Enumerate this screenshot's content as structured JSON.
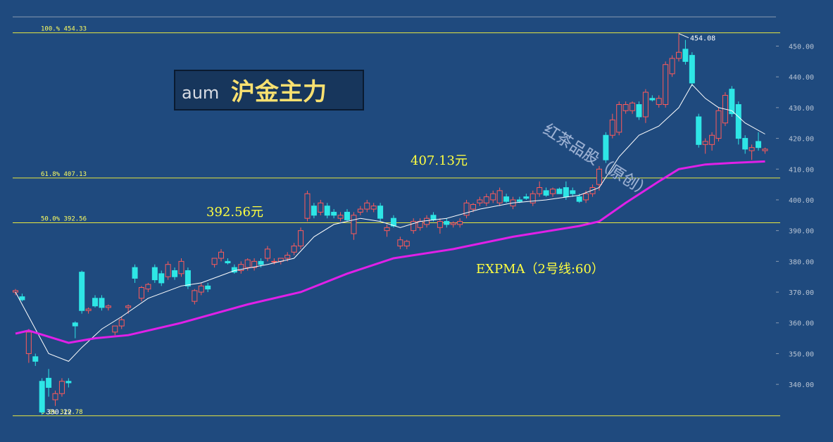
{
  "chart_data": {
    "type": "candlestick",
    "title_code": "aum",
    "title": "沪金主力",
    "up_color": "#ff5a5a",
    "down_color": "#2ee6e6",
    "ylim": [
      329.5,
      459.5
    ],
    "yticks": [
      {
        "value": 340,
        "label": "340.00"
      },
      {
        "value": 350,
        "label": "350.00"
      },
      {
        "value": 360,
        "label": "360.00"
      },
      {
        "value": 370,
        "label": "370.00"
      },
      {
        "value": 380,
        "label": "380.00"
      },
      {
        "value": 390,
        "label": "390.00"
      },
      {
        "value": 400,
        "label": "400.00"
      },
      {
        "value": 410,
        "label": "410.00"
      },
      {
        "value": 420,
        "label": "420.00"
      },
      {
        "value": 430,
        "label": "430.00"
      },
      {
        "value": 440,
        "label": "440.00"
      },
      {
        "value": 450,
        "label": "450.00"
      }
    ],
    "levels": [
      {
        "value": 454.33,
        "label": "100.% 454.33"
      },
      {
        "value": 407.13,
        "label": "61.8% 407.13"
      },
      {
        "value": 392.56,
        "label": "50.0% 392.56"
      },
      {
        "value": 329.78,
        "label": "0.0% 329.78"
      }
    ],
    "annotations": [
      {
        "text": "407.13元"
      },
      {
        "text": "392.56元"
      },
      {
        "text": "红茶品股（原创）"
      }
    ],
    "ohlc": [
      [
        370,
        371,
        369,
        370.5
      ],
      [
        368.5,
        369.5,
        367,
        367.5
      ],
      [
        350,
        358,
        347,
        357
      ],
      [
        349,
        350,
        346,
        347.5
      ],
      [
        341,
        342,
        330.12,
        331
      ],
      [
        342,
        345,
        336,
        339
      ],
      [
        335,
        338,
        333,
        337
      ],
      [
        337,
        342,
        336,
        341
      ],
      [
        341,
        342,
        339,
        340.5
      ],
      [
        360,
        360.5,
        355,
        359
      ],
      [
        376.5,
        377,
        363,
        364
      ],
      [
        364,
        365,
        363,
        364.5
      ],
      [
        368,
        369,
        365,
        365.5
      ],
      [
        368,
        369,
        364,
        365
      ],
      [
        365,
        366,
        364,
        365.5
      ],
      [
        357,
        359,
        356,
        359
      ],
      [
        359,
        362,
        358,
        361
      ],
      [
        365,
        366,
        363,
        365.5
      ],
      [
        378,
        379,
        373,
        374.5
      ],
      [
        368,
        372,
        367,
        371.5
      ],
      [
        371,
        373,
        370,
        372.5
      ],
      [
        378,
        379,
        373,
        374
      ],
      [
        376,
        377,
        372,
        373
      ],
      [
        375,
        380,
        374,
        379
      ],
      [
        377,
        378,
        374,
        375
      ],
      [
        376,
        381,
        375,
        380
      ],
      [
        377,
        378,
        371,
        372
      ],
      [
        367,
        371,
        366,
        370.5
      ],
      [
        370,
        373,
        369,
        372
      ],
      [
        372,
        373,
        370,
        371
      ],
      [
        379,
        381,
        378,
        381
      ],
      [
        381,
        384,
        380,
        383
      ],
      [
        380,
        381,
        379,
        379.5
      ],
      [
        378,
        379,
        376,
        376.5
      ],
      [
        377,
        380,
        376,
        379
      ],
      [
        378,
        381,
        377,
        380.5
      ],
      [
        378,
        381,
        377,
        380
      ],
      [
        380,
        381,
        378,
        379
      ],
      [
        381,
        385,
        380,
        384
      ],
      [
        380,
        381,
        379,
        380
      ],
      [
        380,
        381,
        379,
        381
      ],
      [
        381,
        383,
        380,
        382
      ],
      [
        383,
        386,
        382,
        385
      ],
      [
        385,
        391,
        384,
        390
      ],
      [
        394,
        403,
        393,
        402
      ],
      [
        398,
        399,
        394,
        395
      ],
      [
        396,
        400,
        395,
        399
      ],
      [
        398,
        399,
        394,
        395
      ],
      [
        396,
        397,
        394,
        395
      ],
      [
        394,
        396,
        393,
        395
      ],
      [
        396,
        397,
        393,
        393.5
      ],
      [
        389,
        396,
        387,
        395
      ],
      [
        396,
        398,
        395,
        397
      ],
      [
        397,
        400,
        396,
        399
      ],
      [
        397,
        399,
        396,
        398
      ],
      [
        398,
        399,
        393,
        394
      ],
      [
        390,
        392,
        388,
        391
      ],
      [
        394,
        395,
        391,
        391.5
      ],
      [
        385,
        388,
        384,
        387
      ],
      [
        385,
        387,
        384,
        386.5
      ],
      [
        390,
        394,
        389,
        393
      ],
      [
        391,
        394,
        390,
        393
      ],
      [
        392,
        395,
        391,
        394
      ],
      [
        395,
        396,
        393,
        393.5
      ],
      [
        391,
        394,
        389,
        393
      ],
      [
        393,
        394,
        391,
        392
      ],
      [
        392,
        393,
        391,
        392.5
      ],
      [
        392,
        394,
        391,
        393
      ],
      [
        395,
        400,
        394,
        399
      ],
      [
        397,
        399,
        396,
        398.5
      ],
      [
        399,
        401,
        398,
        400
      ],
      [
        399,
        402,
        398,
        401
      ],
      [
        400,
        403,
        399,
        402
      ],
      [
        399,
        404,
        398,
        403
      ],
      [
        401,
        402,
        399,
        399.5
      ],
      [
        398,
        401,
        397,
        400
      ],
      [
        400,
        401,
        399,
        399.5
      ],
      [
        401,
        402,
        400,
        400.5
      ],
      [
        399,
        403,
        398,
        402
      ],
      [
        402,
        406,
        401,
        404
      ],
      [
        403,
        404,
        401,
        401.5
      ],
      [
        402,
        404,
        401,
        403.5
      ],
      [
        403.5,
        404,
        402,
        402
      ],
      [
        404,
        406,
        400,
        401
      ],
      [
        403,
        404,
        401,
        402
      ],
      [
        401,
        402,
        399,
        399.5
      ],
      [
        400,
        403,
        399,
        402
      ],
      [
        402,
        405,
        401,
        404
      ],
      [
        405,
        411,
        403,
        410
      ],
      [
        421,
        422,
        412,
        413
      ],
      [
        421,
        428,
        420,
        426
      ],
      [
        422,
        432,
        421,
        431
      ],
      [
        429,
        432,
        428,
        431
      ],
      [
        429,
        432,
        428,
        431.5
      ],
      [
        431,
        432,
        426,
        427
      ],
      [
        427,
        436,
        425,
        435
      ],
      [
        433,
        434,
        432,
        432.5
      ],
      [
        431,
        434,
        430,
        433
      ],
      [
        431,
        445,
        430,
        444
      ],
      [
        441,
        447,
        440,
        446
      ],
      [
        446,
        454.08,
        445,
        448
      ],
      [
        449,
        452,
        444,
        445
      ],
      [
        447,
        448,
        437,
        438
      ],
      [
        427,
        428,
        417,
        418
      ],
      [
        418,
        420,
        415,
        419
      ],
      [
        418,
        422,
        416,
        421
      ],
      [
        420,
        430,
        419,
        429
      ],
      [
        425,
        435,
        424,
        434
      ],
      [
        436,
        437,
        427,
        428
      ],
      [
        431,
        432,
        418,
        420
      ],
      [
        420,
        421,
        415,
        416.5
      ],
      [
        416,
        418,
        413,
        417
      ],
      [
        419,
        422,
        416,
        417
      ],
      [
        416,
        417,
        415,
        416.5
      ]
    ],
    "lines": [
      {
        "color": "#ffffff",
        "x": [
          0,
          3,
          5,
          8,
          10,
          13,
          16,
          20,
          25,
          28,
          33,
          38,
          42,
          45,
          48,
          52,
          55,
          58,
          61,
          65,
          70,
          75,
          80,
          85,
          88,
          91,
          94,
          97,
          100,
          102,
          104,
          106,
          108,
          110,
          113
        ],
        "values": [
          370,
          358,
          350,
          347.5,
          352,
          358,
          362,
          368,
          372,
          373,
          377,
          379,
          381,
          388,
          392,
          394,
          393,
          391,
          393,
          394,
          397,
          399,
          400,
          401.5,
          404,
          414,
          421,
          424,
          430,
          437.5,
          433,
          430,
          429,
          425,
          421.4
        ]
      },
      {
        "name": "EXPMA（2号线:60）",
        "color": "#e020e8",
        "x": [
          0,
          2,
          8,
          12,
          17,
          25,
          35,
          43,
          50,
          57,
          66,
          75,
          85,
          88,
          92,
          97,
          100,
          104,
          108,
          113
        ],
        "values": [
          356.5,
          357.5,
          353.5,
          355,
          356,
          360,
          366,
          370,
          376,
          381,
          384,
          388,
          391.5,
          393,
          399,
          406,
          410,
          411.5,
          412,
          412.5
        ]
      }
    ]
  }
}
